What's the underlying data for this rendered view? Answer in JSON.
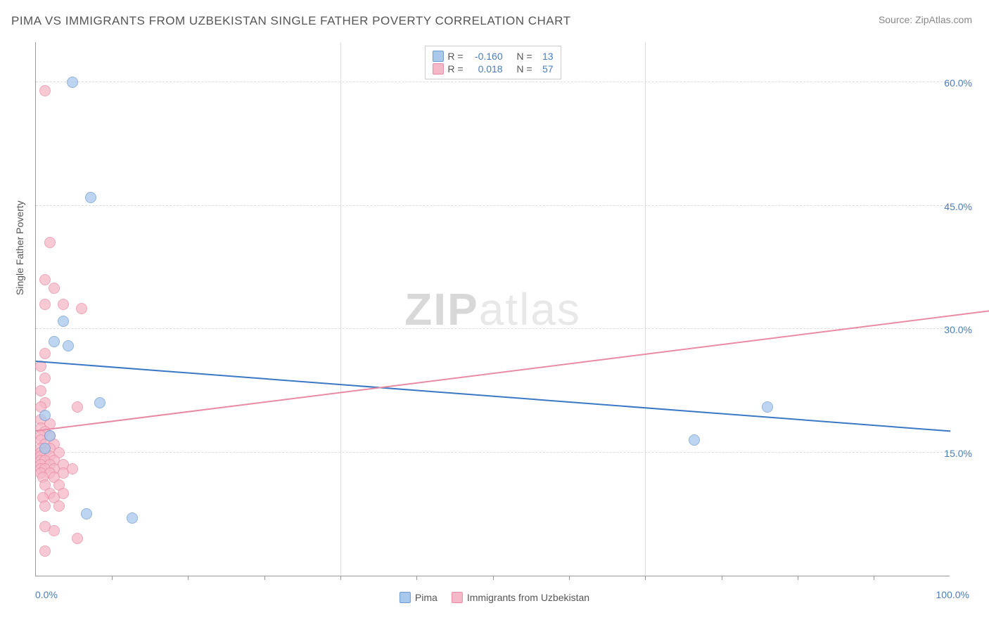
{
  "title": "PIMA VS IMMIGRANTS FROM UZBEKISTAN SINGLE FATHER POVERTY CORRELATION CHART",
  "source": "Source: ZipAtlas.com",
  "y_axis_label": "Single Father Poverty",
  "watermark": {
    "zip": "ZIP",
    "atlas": "atlas"
  },
  "chart": {
    "type": "scatter",
    "xlim": [
      0,
      100
    ],
    "ylim": [
      0,
      65
    ],
    "x_ticks_labels": {
      "min": "0.0%",
      "max": "100.0%"
    },
    "x_tick_marks": [
      8.3,
      16.6,
      25,
      33.3,
      41.6,
      50,
      58.3,
      66.6,
      75,
      83.3,
      91.6
    ],
    "v_grid_lines": [
      33.3,
      66.6
    ],
    "y_ticks": [
      {
        "value": 15.0,
        "label": "15.0%"
      },
      {
        "value": 30.0,
        "label": "30.0%"
      },
      {
        "value": 45.0,
        "label": "45.0%"
      },
      {
        "value": 60.0,
        "label": "60.0%"
      }
    ],
    "background_color": "#ffffff",
    "grid_color": "#dddddd",
    "axis_color": "#999999",
    "tick_label_color": "#4a7ebb",
    "point_radius": 8,
    "series": [
      {
        "name": "Pima",
        "fill_color": "#a8c8ec",
        "stroke_color": "#6b9bd1",
        "regression": {
          "x1": 0,
          "y1": 26.0,
          "x2": 100,
          "y2": 17.5,
          "color": "#3b78c4",
          "width": 2,
          "dashed": false
        },
        "R_label": "R =",
        "R_value": "-0.160",
        "N_label": "N =",
        "N_value": "13",
        "points": [
          {
            "x": 4.0,
            "y": 60.0
          },
          {
            "x": 6.0,
            "y": 46.0
          },
          {
            "x": 3.0,
            "y": 31.0
          },
          {
            "x": 2.0,
            "y": 28.5
          },
          {
            "x": 3.5,
            "y": 28.0
          },
          {
            "x": 7.0,
            "y": 21.0
          },
          {
            "x": 1.0,
            "y": 19.5
          },
          {
            "x": 1.5,
            "y": 17.0
          },
          {
            "x": 1.0,
            "y": 15.5
          },
          {
            "x": 5.5,
            "y": 7.5
          },
          {
            "x": 10.5,
            "y": 7.0
          },
          {
            "x": 72.0,
            "y": 16.5
          },
          {
            "x": 80.0,
            "y": 20.5
          }
        ]
      },
      {
        "name": "Immigrants from Uzbekistan",
        "fill_color": "#f5b8c8",
        "stroke_color": "#e88ba4",
        "regression": {
          "x1": 0,
          "y1": 17.5,
          "x2": 100,
          "y2": 31.5,
          "color": "#e88ba4",
          "width": 1,
          "dashed": true,
          "solid_until_x": 5
        },
        "R_label": "R =",
        "R_value": "0.018",
        "N_label": "N =",
        "N_value": "57",
        "points": [
          {
            "x": 1.0,
            "y": 59.0
          },
          {
            "x": 1.5,
            "y": 40.5
          },
          {
            "x": 1.0,
            "y": 36.0
          },
          {
            "x": 2.0,
            "y": 35.0
          },
          {
            "x": 1.0,
            "y": 33.0
          },
          {
            "x": 3.0,
            "y": 33.0
          },
          {
            "x": 5.0,
            "y": 32.5
          },
          {
            "x": 1.0,
            "y": 27.0
          },
          {
            "x": 0.5,
            "y": 25.5
          },
          {
            "x": 1.0,
            "y": 24.0
          },
          {
            "x": 0.5,
            "y": 22.5
          },
          {
            "x": 1.0,
            "y": 21.0
          },
          {
            "x": 0.5,
            "y": 20.5
          },
          {
            "x": 4.5,
            "y": 20.5
          },
          {
            "x": 0.5,
            "y": 19.0
          },
          {
            "x": 1.5,
            "y": 18.5
          },
          {
            "x": 0.5,
            "y": 18.0
          },
          {
            "x": 1.0,
            "y": 17.5
          },
          {
            "x": 0.5,
            "y": 17.0
          },
          {
            "x": 1.5,
            "y": 17.0
          },
          {
            "x": 0.5,
            "y": 16.5
          },
          {
            "x": 1.0,
            "y": 16.0
          },
          {
            "x": 2.0,
            "y": 16.0
          },
          {
            "x": 0.5,
            "y": 15.5
          },
          {
            "x": 1.5,
            "y": 15.5
          },
          {
            "x": 0.5,
            "y": 15.0
          },
          {
            "x": 1.0,
            "y": 15.0
          },
          {
            "x": 2.5,
            "y": 15.0
          },
          {
            "x": 0.5,
            "y": 14.5
          },
          {
            "x": 1.5,
            "y": 14.5
          },
          {
            "x": 0.5,
            "y": 14.0
          },
          {
            "x": 1.0,
            "y": 14.0
          },
          {
            "x": 2.0,
            "y": 14.0
          },
          {
            "x": 0.5,
            "y": 13.5
          },
          {
            "x": 1.5,
            "y": 13.5
          },
          {
            "x": 3.0,
            "y": 13.5
          },
          {
            "x": 0.5,
            "y": 13.0
          },
          {
            "x": 1.0,
            "y": 13.0
          },
          {
            "x": 2.0,
            "y": 13.0
          },
          {
            "x": 4.0,
            "y": 13.0
          },
          {
            "x": 0.5,
            "y": 12.5
          },
          {
            "x": 1.5,
            "y": 12.5
          },
          {
            "x": 3.0,
            "y": 12.5
          },
          {
            "x": 0.8,
            "y": 12.0
          },
          {
            "x": 2.0,
            "y": 12.0
          },
          {
            "x": 1.0,
            "y": 11.0
          },
          {
            "x": 2.5,
            "y": 11.0
          },
          {
            "x": 1.5,
            "y": 10.0
          },
          {
            "x": 3.0,
            "y": 10.0
          },
          {
            "x": 0.8,
            "y": 9.5
          },
          {
            "x": 2.0,
            "y": 9.5
          },
          {
            "x": 1.0,
            "y": 8.5
          },
          {
            "x": 2.5,
            "y": 8.5
          },
          {
            "x": 1.0,
            "y": 6.0
          },
          {
            "x": 2.0,
            "y": 5.5
          },
          {
            "x": 4.5,
            "y": 4.5
          },
          {
            "x": 1.0,
            "y": 3.0
          }
        ]
      }
    ]
  }
}
